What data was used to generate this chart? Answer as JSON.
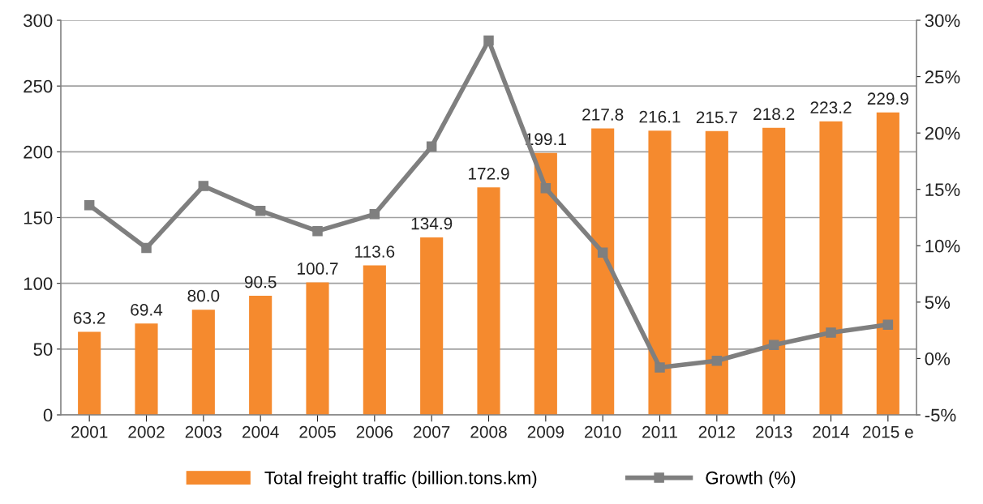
{
  "chart_data": {
    "type": "bar",
    "categories": [
      "2001",
      "2002",
      "2003",
      "2004",
      "2005",
      "2006",
      "2007",
      "2008",
      "2009",
      "2010",
      "2011",
      "2012",
      "2013",
      "2014",
      "2015 e"
    ],
    "series": [
      {
        "name": "Total freight traffic (billion.tons.km)",
        "color": "#f58a2e",
        "values": [
          63.2,
          69.4,
          80.0,
          90.5,
          100.7,
          113.6,
          134.9,
          172.9,
          199.1,
          217.8,
          216.1,
          215.7,
          218.2,
          223.2,
          229.9
        ],
        "value_labels": [
          "63.2",
          "69.4",
          "80.0",
          "90.5",
          "100.7",
          "113.6",
          "134.9",
          "172.9",
          "199.1",
          "217.8",
          "216.1",
          "215.7",
          "218.2",
          "223.2",
          "229.9"
        ]
      },
      {
        "name": "Growth (%)",
        "type": "line",
        "axis": "y2",
        "color": "#7f7f7f",
        "marker": "square",
        "values": [
          13.6,
          9.8,
          15.3,
          13.1,
          11.3,
          12.8,
          18.8,
          28.2,
          15.1,
          9.4,
          -0.8,
          -0.2,
          1.2,
          2.3,
          3.0
        ]
      }
    ],
    "ylim": [
      0,
      300
    ],
    "yticks": [
      0,
      50,
      100,
      150,
      200,
      250,
      300
    ],
    "y2lim": [
      -5,
      30
    ],
    "y2ticks": [
      {
        "value": -5,
        "label": "-5%"
      },
      {
        "value": 0,
        "label": "0%"
      },
      {
        "value": 5,
        "label": "5%"
      },
      {
        "value": 10,
        "label": "10%"
      },
      {
        "value": 15,
        "label": "15%"
      },
      {
        "value": 20,
        "label": "20%"
      },
      {
        "value": 25,
        "label": "25%"
      },
      {
        "value": 30,
        "label": "30%"
      }
    ],
    "grid": "y",
    "legend": "bottom"
  }
}
